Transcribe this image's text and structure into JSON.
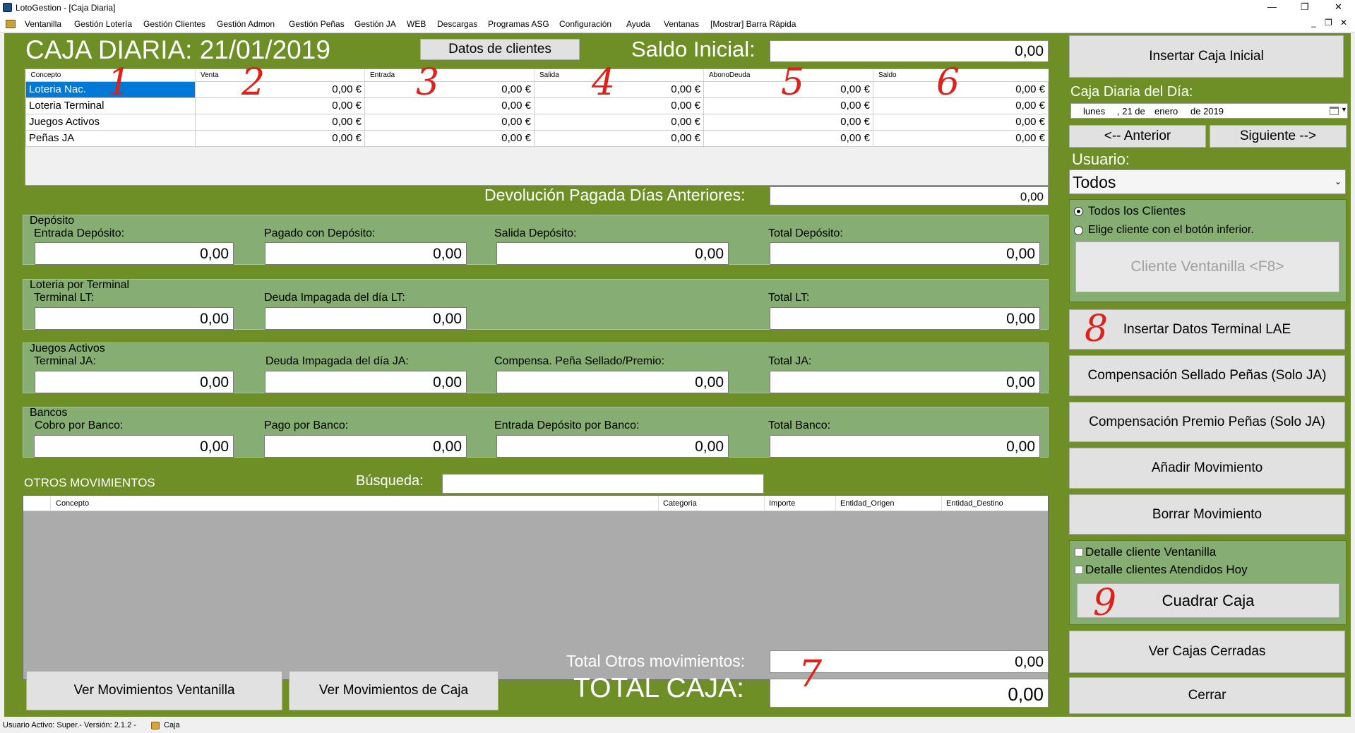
{
  "window": {
    "title": "LotoGestion - [Caja Diaria]",
    "controls": [
      "—",
      "❐",
      "✕"
    ],
    "mdi_controls": [
      "_",
      "❐",
      "✕"
    ]
  },
  "menu": [
    "Ventanilla",
    "Gestión Lotería",
    "Gestión Clientes",
    "Gestión Admon",
    "Gestión Peñas",
    "Gestión JA",
    "WEB",
    "Descargas",
    "Programas ASG",
    "Configuración",
    "Ayuda",
    "Ventanas",
    "[Mostrar] Barra Rápida"
  ],
  "header": {
    "title": "CAJA DIARIA: 21/01/2019",
    "clients_button": "Datos de clientes",
    "saldo_label": "Saldo Inicial:",
    "saldo_value": "0,00"
  },
  "grid": {
    "columns": [
      "Concepto",
      "Venta",
      "Entrada",
      "Salida",
      "AbonoDeuda",
      "Saldo"
    ],
    "rows": [
      [
        "Loteria Nac.",
        "0,00 €",
        "0,00 €",
        "0,00 €",
        "0,00 €",
        "0,00 €"
      ],
      [
        "Loteria Terminal",
        "0,00 €",
        "0,00 €",
        "0,00 €",
        "0,00 €",
        "0,00 €"
      ],
      [
        "Juegos Activos",
        "0,00 €",
        "0,00 €",
        "0,00 €",
        "0,00 €",
        "0,00 €"
      ],
      [
        "Peñas JA",
        "0,00 €",
        "0,00 €",
        "0,00 €",
        "0,00 €",
        "0,00 €"
      ]
    ]
  },
  "devolucion": {
    "label": "Devolución Pagada Días Anteriores:",
    "value": "0,00"
  },
  "groups": {
    "deposito": {
      "title": "Depósito",
      "fields": [
        {
          "label": "Entrada Depósito:",
          "value": "0,00"
        },
        {
          "label": "Pagado con Depósito:",
          "value": "0,00"
        },
        {
          "label": "Salida Depósito:",
          "value": "0,00"
        },
        {
          "label": "Total Depósito:",
          "value": "0,00"
        }
      ]
    },
    "terminal": {
      "title": "Loteria por Terminal",
      "fields": [
        {
          "label": "Terminal LT:",
          "value": "0,00"
        },
        {
          "label": "Deuda Impagada del día LT:",
          "value": "0,00"
        },
        {
          "label": "Total LT:",
          "value": "0,00"
        }
      ]
    },
    "juegos": {
      "title": "Juegos Activos",
      "fields": [
        {
          "label": "Terminal JA:",
          "value": "0,00"
        },
        {
          "label": "Deuda Impagada del día JA:",
          "value": "0,00"
        },
        {
          "label": "Compensa. Peña Sellado/Premio:",
          "value": "0,00"
        },
        {
          "label": "Total JA:",
          "value": "0,00"
        }
      ]
    },
    "bancos": {
      "title": "Bancos",
      "fields": [
        {
          "label": "Cobro por Banco:",
          "value": "0,00"
        },
        {
          "label": "Pago por Banco:",
          "value": "0,00"
        },
        {
          "label": "Entrada Depósito por Banco:",
          "value": "0,00"
        },
        {
          "label": "Total Banco:",
          "value": "0,00"
        }
      ]
    }
  },
  "otros": {
    "title": "OTROS MOVIMIENTOS",
    "search_label": "Búsqueda:",
    "search_value": "",
    "columns": [
      "Concepto",
      "Categoria",
      "Importe",
      "Entidad_Origen",
      "Entidad_Destino"
    ]
  },
  "totals": {
    "otros_label": "Total Otros movimientos:",
    "otros_value": "0,00",
    "caja_label": "TOTAL CAJA:",
    "caja_value": "0,00"
  },
  "bottom_buttons": {
    "ventanilla": "Ver Movimientos Ventanilla",
    "caja": "Ver Movimientos de Caja"
  },
  "right": {
    "insertar_caja": "Insertar Caja Inicial",
    "caja_dia_label": "Caja Diaria del Día:",
    "date": {
      "weekday": "lunes",
      "day": ", 21 de",
      "month": "enero",
      "year": "de 2019"
    },
    "anterior": "<-- Anterior",
    "siguiente": "Siguiente -->",
    "usuario_label": "Usuario:",
    "usuario_value": "Todos",
    "radio_todos": "Todos los Clientes",
    "radio_elige": "Elige cliente con el botón inferior.",
    "cliente_ventanilla": "Cliente Ventanilla <F8>",
    "insertar_lae": "Insertar Datos Terminal LAE",
    "comp_sellado": "Compensación Sellado Peñas (Solo JA)",
    "comp_premio": "Compensación Premio Peñas (Solo JA)",
    "anadir": "Añadir Movimiento",
    "borrar": "Borrar Movimiento",
    "check_detalle_ventanilla": "Detalle cliente Ventanilla",
    "check_detalle_atendidos": "Detalle clientes Atendidos Hoy",
    "cuadrar": "Cuadrar Caja",
    "ver_cerradas": "Ver Cajas Cerradas",
    "cerrar": "Cerrar"
  },
  "annotations": [
    "1",
    "2",
    "3",
    "4",
    "5",
    "6",
    "7",
    "8",
    "9"
  ],
  "status": {
    "text": "Usuario Activo: Super.- Versión: 2.1.2 -",
    "caja": "Caja"
  },
  "colors": {
    "background": "#6e8f25",
    "group": "#86ad72",
    "selection": "#0078d7",
    "annotation": "#e0201a"
  }
}
